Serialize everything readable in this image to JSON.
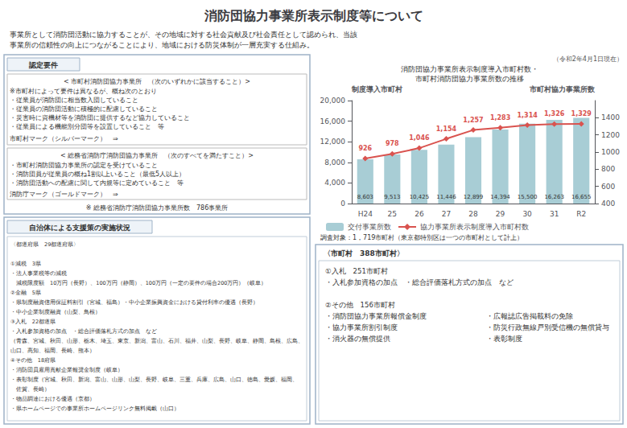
{
  "chart_data": {
    "type": "bar",
    "title": "消防団協力事業所表示制度等について",
    "subtitle": "消防団協力事業所表示制度導入市町村数・\n市町村消防団協力事業所数の推移",
    "ylabel": "制度導入市町村",
    "y2label": "市町村協力事業所数",
    "categories": [
      "H24",
      "25",
      "26",
      "27",
      "28",
      "29",
      "30",
      "31",
      "R2"
    ],
    "series": [
      {
        "name": "交付事業所数",
        "type": "bar",
        "color": "#a8cdd5",
        "values": [
          8603,
          9513,
          10425,
          11446,
          12899,
          14394,
          15500,
          16263,
          16655
        ],
        "value_labels": [
          "8,603",
          "9,513",
          "10,425",
          "11,446",
          "12,899",
          "14,394",
          "15,500",
          "16,263",
          "16,655"
        ]
      },
      {
        "name": "協力事業所表示制度導入市町村数",
        "type": "line",
        "axis": "y2",
        "color": "#d9534f",
        "marker": "diamond",
        "line_style": "solid",
        "values": [
          926,
          978,
          1046,
          1154,
          1257,
          1283,
          1314,
          1326,
          1329
        ],
        "value_labels": [
          "926",
          "978",
          "1,046",
          "1,154",
          "1,257",
          "1,283",
          "1,314",
          "1,326",
          "1,329"
        ]
      }
    ],
    "ylim": [
      0,
      20000
    ],
    "yticks": [
      0,
      {
        "value": 4000,
        "label": "4,000"
      },
      {
        "value": 8000,
        "label": "8,000"
      },
      {
        "value": 12000,
        "label": "12,000"
      },
      {
        "value": 16000,
        "label": "16,000"
      },
      {
        "value": 20000,
        "label": "20,000"
      }
    ],
    "y2lim": [
      400,
      1600
    ],
    "y2ticks": [
      400,
      600,
      800,
      1000,
      1200,
      1400
    ],
    "grid": false,
    "legend": "bottom",
    "data_labels": true,
    "annotations": [
      "事業所として消防団活動に協力することが、その地域に対する社会貢献及び社会責任として認められ、当該\n事業所の信頼性の向上につながることにより、地域における防災体制が一層充実する仕組み。",
      "（令和2年4月1日現在）",
      "調査対象：1，719市町村（東京都特別区は一つの市町村として計上）",
      "認定要件",
      "< 市町村消防団協力事業所　（次のいずれかに該当すること）>",
      "※市町村によって要件は異なるが、概ね次のとおり\n・従業員が消防団に相当数入団していること\n・従業員の消防団活動に積極的に配慮していること\n・災害時に資機材等を消防団に提供するなど協力していること\n・従業員による機能別分団等を設置していること　等",
      "市町村マーク（シルバーマーク）　⇒",
      "< 総務省消防庁消防団協力事業所　（次のすべてを満たすこと）>",
      "・市町村消防団協力事業所の認定を受けていること\n・消防団員が従業員の概ね1割以上いること（最低5人以上）\n・消防団活動への配慮に関して内規等に定めていること　等",
      "消防庁マーク（ゴールドマーク）　⇒",
      "※ 総務省消防庁消防団協力事業所数　786事業所",
      "自治体による支援策の実施状況",
      "〈都道府県　29都道府県〉\n\n①減税　3県\n・法人事業税等の減税\n　減税限度額　10万円（長野）、100万円（静岡）、100万円（一定の要件の場合200万円）（岐阜）\n②金融　5県\n・県制度融資信用保証料割引（宮城、福島）・中小企業振興資金における貸付利率の優遇（長野）\n・中小企業制度融資（山梨、鳥根）\n③入札　22都道県\n・入札参加資格の加点　・総合評価落札方式の加点　など\n（青森、宮城、秋田、山形、栃木、埼玉、東京、新潟、富山、石川、福井、山梨、長野、岐阜、静岡、島根、広島、\n山口、高知、福岡、長崎、熊本）\n④その他　18府県\n・消防団員雇用貢献企業報奨金制度（岐阜）\n・表彰制度（宮城、秋田、新潟、富山、山形、山梨、長野、岐阜、三重、兵庫、広島、山口、徳島、愛媛、福岡、\n　佐賀、長崎）\n・物品調達における優遇（京都）\n・県ホームページでの事業所ホームページリンク無料掲載（山口）",
      "〈市町村　388市町村〉",
      "①入札　251市町村\n・入札参加資格の加点　・総合評価落札方式の加点　など\n\n②その他　156市町村\n・消防団協力事業所報償金制度\n・協力事業所割引制度\n・消火器の無償提供",
      "・広報誌広告掲載料の免除\n・防災行政無線戸別受信機の無償貸与\n・表彰制度"
    ]
  }
}
